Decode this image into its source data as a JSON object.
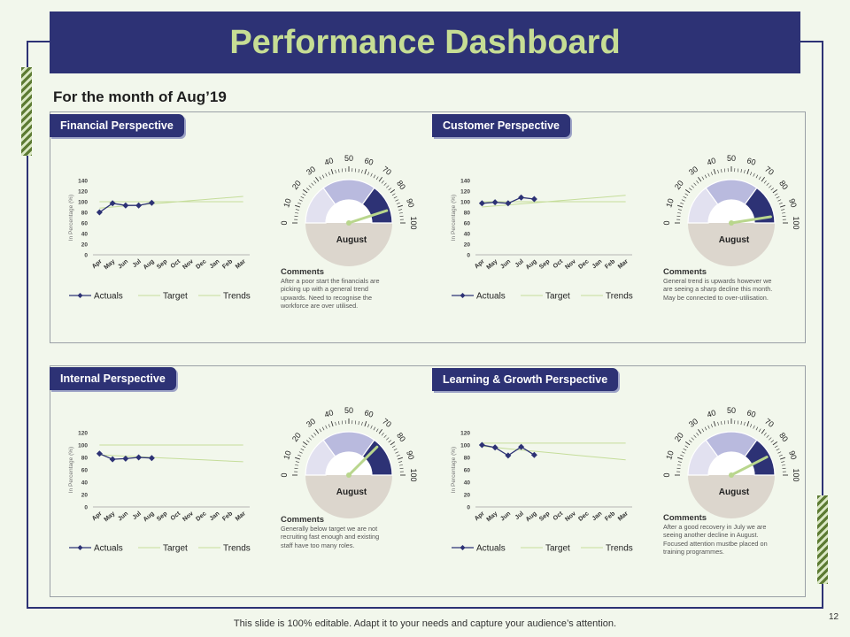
{
  "slide": {
    "title": "Performance Dashboard",
    "subtitle": "For the month of Aug’19",
    "footer": "This slide is 100% editable. Adapt it to your needs and capture your audience’s attention.",
    "page_number": "12"
  },
  "colors": {
    "navy": "#2d3275",
    "title_text": "#c6dd94",
    "target_line": "#c5dd9a",
    "gauge_fill": "#dcd6cd",
    "gauge_light": "#e2e1f0",
    "gauge_mid": "#b9bade"
  },
  "panels": [
    {
      "label": "Financial Perspective",
      "comment_title": "Comments",
      "comment_lines": [
        "After a poor start the financials are",
        "picking up with a general trend",
        "upwards. Need to recognise the",
        "workforce are over utilised."
      ],
      "gauge_label": "August",
      "gauge_value": 90,
      "chart_data": {
        "type": "line",
        "ylabel": "In Percentage (%)",
        "categories": [
          "Apr",
          "May",
          "Jun",
          "Jul",
          "Aug",
          "Sep",
          "Oct",
          "Nov",
          "Dec",
          "Jan",
          "Feb",
          "Mar"
        ],
        "yticks": [
          0,
          20,
          40,
          60,
          80,
          100,
          120,
          140
        ],
        "ylim": [
          0,
          140
        ],
        "series": [
          {
            "name": "Actuals",
            "values": [
              80,
              97,
              93,
              93,
              98,
              null,
              null,
              null,
              null,
              null,
              null,
              null
            ]
          },
          {
            "name": "Target",
            "values": [
              100,
              100,
              100,
              100,
              100,
              100,
              100,
              100,
              100,
              100,
              100,
              100
            ]
          },
          {
            "name": "Trends",
            "values": [
              88,
              90,
              92,
              94,
              96,
              98,
              100,
              102,
              104,
              106,
              108,
              110
            ]
          }
        ],
        "legend": [
          "Actuals",
          "Target",
          "Trends"
        ]
      }
    },
    {
      "label": "Customer Perspective",
      "comment_title": "Comments",
      "comment_lines": [
        "General trend is upwards however we",
        "are seeing a sharp decline this month.",
        "May be connected to over-utilisation."
      ],
      "gauge_label": "August",
      "gauge_value": 95,
      "chart_data": {
        "type": "line",
        "ylabel": "In Percentage (%)",
        "categories": [
          "Apr",
          "May",
          "Jun",
          "Jul",
          "Aug",
          "Sep",
          "Oct",
          "Nov",
          "Dec",
          "Jan",
          "Feb",
          "Mar"
        ],
        "yticks": [
          0,
          20,
          40,
          60,
          80,
          100,
          120,
          140
        ],
        "ylim": [
          0,
          140
        ],
        "series": [
          {
            "name": "Actuals",
            "values": [
              97,
              99,
              97,
              108,
              105,
              null,
              null,
              null,
              null,
              null,
              null,
              null
            ]
          },
          {
            "name": "Target",
            "values": [
              100,
              100,
              100,
              100,
              100,
              100,
              100,
              100,
              100,
              100,
              100,
              100
            ]
          },
          {
            "name": "Trends",
            "values": [
              90,
              92,
              94,
              96,
              98,
              100,
              102,
              104,
              106,
              108,
              110,
              112
            ]
          }
        ],
        "legend": [
          "Actuals",
          "Target",
          "Trends"
        ]
      }
    },
    {
      "label": "Internal Perspective",
      "comment_title": "Comments",
      "comment_lines": [
        "Generally below target we are not",
        "recruiting fast enough and existing",
        "staff have too many roles."
      ],
      "gauge_label": "August",
      "gauge_value": 75,
      "chart_data": {
        "type": "line",
        "ylabel": "In Percentage (%)",
        "categories": [
          "Apr",
          "May",
          "Jun",
          "Jul",
          "Aug",
          "Sep",
          "Oct",
          "Nov",
          "Dec",
          "Jan",
          "Feb",
          "Mar"
        ],
        "yticks": [
          0,
          20,
          40,
          60,
          80,
          100,
          120
        ],
        "ylim": [
          0,
          120
        ],
        "series": [
          {
            "name": "Actuals",
            "values": [
              86,
              77,
              78,
              80,
              79,
              null,
              null,
              null,
              null,
              null,
              null,
              null
            ]
          },
          {
            "name": "Target",
            "values": [
              100,
              100,
              100,
              100,
              100,
              100,
              100,
              100,
              100,
              100,
              100,
              100
            ]
          },
          {
            "name": "Trends",
            "values": [
              84,
              83,
              82,
              81,
              80,
              79,
              78,
              77,
              76,
              75,
              74,
              73
            ]
          }
        ],
        "legend": [
          "Actuals",
          "Target",
          "Trends"
        ]
      }
    },
    {
      "label": "Learning & Growth Perspective",
      "comment_title": "Comments",
      "comment_lines": [
        "After a good recovery in July we are",
        "seeing another decline in August.",
        "Focused attention mustbe placed on",
        "training programmes."
      ],
      "gauge_label": "August",
      "gauge_value": 85,
      "chart_data": {
        "type": "line",
        "ylabel": "In Percentage (%)",
        "categories": [
          "Apr",
          "May",
          "Jun",
          "Jul",
          "Aug",
          "Sep",
          "Oct",
          "Nov",
          "Dec",
          "Jan",
          "Feb",
          "Mar"
        ],
        "yticks": [
          0,
          20,
          40,
          60,
          80,
          100,
          120
        ],
        "ylim": [
          0,
          120
        ],
        "series": [
          {
            "name": "Actuals",
            "values": [
              100,
              96,
              83,
              97,
              84,
              null,
              null,
              null,
              null,
              null,
              null,
              null
            ]
          },
          {
            "name": "Target",
            "values": [
              103,
              103,
              103,
              103,
              103,
              103,
              103,
              103,
              103,
              103,
              103,
              103
            ]
          },
          {
            "name": "Trends",
            "values": [
              98,
              96,
              94,
              92,
              90,
              88,
              86,
              84,
              82,
              80,
              78,
              76
            ]
          }
        ],
        "legend": [
          "Actuals",
          "Target",
          "Trends"
        ]
      }
    }
  ]
}
